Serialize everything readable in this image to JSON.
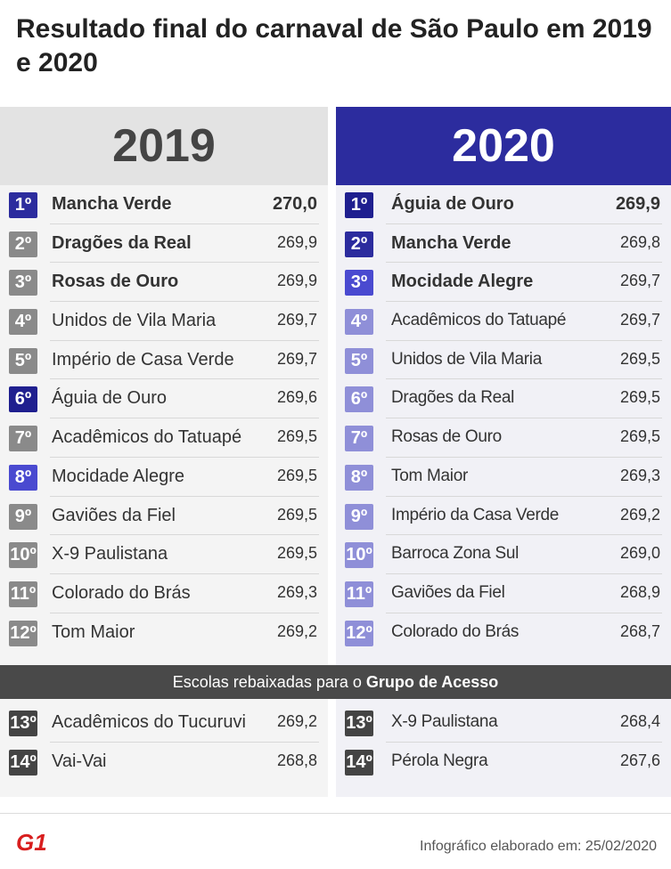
{
  "title": "Resultado final do carnaval de São Paulo em 2019 e 2020",
  "colors": {
    "dark_blue": "#1f1f8f",
    "mid_blue": "#3a3ab8",
    "light_purple": "#8f8fd8",
    "gray": "#8a8a8a",
    "dark_gray": "#444444",
    "header_2020": "#2c2c9e",
    "logo_red": "#d81e1e"
  },
  "y2019": {
    "year": "2019",
    "rows": [
      {
        "pos": "1º",
        "name": "Mancha Verde",
        "score": "270,0",
        "color": "#2c2c9e",
        "bold": true
      },
      {
        "pos": "2º",
        "name": "Dragões da Real",
        "score": "269,9",
        "color": "#8a8a8a",
        "bold": true
      },
      {
        "pos": "3º",
        "name": "Rosas de Ouro",
        "score": "269,9",
        "color": "#8a8a8a",
        "bold": true
      },
      {
        "pos": "4º",
        "name": "Unidos de Vila Maria",
        "score": "269,7",
        "color": "#8a8a8a"
      },
      {
        "pos": "5º",
        "name": "Império de Casa Verde",
        "score": "269,7",
        "color": "#8a8a8a"
      },
      {
        "pos": "6º",
        "name": "Águia de Ouro",
        "score": "269,6",
        "color": "#1f1f8f"
      },
      {
        "pos": "7º",
        "name": "Acadêmicos do Tatuapé",
        "score": "269,5",
        "color": "#8a8a8a"
      },
      {
        "pos": "8º",
        "name": "Mocidade Alegre",
        "score": "269,5",
        "color": "#4a4ad0"
      },
      {
        "pos": "9º",
        "name": "Gaviões da Fiel",
        "score": "269,5",
        "color": "#8a8a8a"
      },
      {
        "pos": "10º",
        "name": "X-9 Paulistana",
        "score": "269,5",
        "color": "#8a8a8a"
      },
      {
        "pos": "11º",
        "name": "Colorado do Brás",
        "score": "269,3",
        "color": "#8a8a8a"
      },
      {
        "pos": "12º",
        "name": "Tom Maior",
        "score": "269,2",
        "color": "#8a8a8a"
      }
    ],
    "relegated": [
      {
        "pos": "13º",
        "name": "Acadêmicos do Tucuruvi",
        "score": "269,2",
        "color": "#444444"
      },
      {
        "pos": "14º",
        "name": "Vai-Vai",
        "score": "268,8",
        "color": "#444444"
      }
    ]
  },
  "y2020": {
    "year": "2020",
    "rows": [
      {
        "pos": "1º",
        "name": "Águia de Ouro",
        "score": "269,9",
        "color": "#1f1f8f",
        "bold": true
      },
      {
        "pos": "2º",
        "name": "Mancha Verde",
        "score": "269,8",
        "color": "#2c2c9e",
        "bold": true
      },
      {
        "pos": "3º",
        "name": "Mocidade Alegre",
        "score": "269,7",
        "color": "#4a4ad0",
        "bold": true
      },
      {
        "pos": "4º",
        "name": "Acadêmicos do Tatuapé",
        "score": "269,7",
        "color": "#8f8fd8"
      },
      {
        "pos": "5º",
        "name": "Unidos de Vila Maria",
        "score": "269,5",
        "color": "#8f8fd8"
      },
      {
        "pos": "6º",
        "name": "Dragões da Real",
        "score": "269,5",
        "color": "#8f8fd8"
      },
      {
        "pos": "7º",
        "name": "Rosas de Ouro",
        "score": "269,5",
        "color": "#8f8fd8"
      },
      {
        "pos": "8º",
        "name": "Tom Maior",
        "score": "269,3",
        "color": "#8f8fd8"
      },
      {
        "pos": "9º",
        "name": "Império da Casa Verde",
        "score": "269,2",
        "color": "#8f8fd8"
      },
      {
        "pos": "10º",
        "name": "Barroca Zona Sul",
        "score": "269,0",
        "color": "#8f8fd8"
      },
      {
        "pos": "11º",
        "name": "Gaviões da Fiel",
        "score": "268,9",
        "color": "#8f8fd8"
      },
      {
        "pos": "12º",
        "name": "Colorado do Brás",
        "score": "268,7",
        "color": "#8f8fd8"
      }
    ],
    "relegated": [
      {
        "pos": "13º",
        "name": "X-9 Paulistana",
        "score": "268,4",
        "color": "#444444"
      },
      {
        "pos": "14º",
        "name": "Pérola Negra",
        "score": "267,6",
        "color": "#444444"
      }
    ]
  },
  "relegation": {
    "text": "Escolas rebaixadas para o",
    "group": "Grupo de Acesso"
  },
  "footer": {
    "logo_text": "G1",
    "credit": "Infográfico elaborado em: 25/02/2020"
  }
}
